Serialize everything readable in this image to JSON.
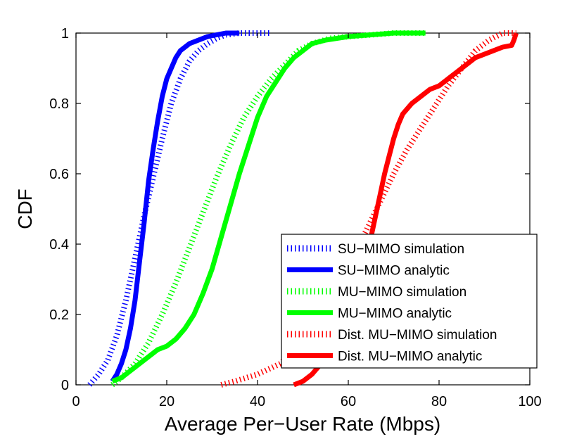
{
  "chart_data": {
    "type": "line",
    "title": "",
    "xlabel": "Average Per−User Rate (Mbps)",
    "ylabel": "CDF",
    "xlim": [
      0,
      100
    ],
    "ylim": [
      0,
      1
    ],
    "xticks": [
      0,
      20,
      40,
      60,
      80,
      100
    ],
    "xtick_labels": [
      "0",
      "20",
      "40",
      "60",
      "80",
      "100"
    ],
    "yticks": [
      0,
      0.2,
      0.4,
      0.6,
      0.8,
      1
    ],
    "ytick_labels": [
      "0",
      "0.2",
      "0.4",
      "0.6",
      "0.8",
      "1"
    ],
    "grid": false,
    "legend_position": "bottom-right",
    "series": [
      {
        "name": "SU−MIMO simulation",
        "color": "#0000ff",
        "style": "dotted",
        "x": [
          3,
          5,
          7,
          9,
          11,
          13,
          15,
          17,
          19,
          21,
          23,
          25,
          27,
          29,
          31,
          33,
          36,
          40,
          43
        ],
        "y": [
          0,
          0.03,
          0.07,
          0.14,
          0.24,
          0.36,
          0.48,
          0.59,
          0.7,
          0.8,
          0.87,
          0.92,
          0.95,
          0.97,
          0.985,
          0.995,
          1.0,
          1.0,
          1.0
        ]
      },
      {
        "name": "SU−MIMO analytic",
        "color": "#0000ff",
        "style": "solid",
        "x": [
          8,
          9,
          10,
          11,
          12,
          13,
          14,
          15,
          16,
          17,
          18,
          19,
          20,
          21,
          22,
          23,
          25,
          27,
          29,
          31,
          33,
          36
        ],
        "y": [
          0.01,
          0.03,
          0.06,
          0.1,
          0.16,
          0.24,
          0.35,
          0.46,
          0.58,
          0.67,
          0.75,
          0.82,
          0.87,
          0.9,
          0.93,
          0.95,
          0.97,
          0.98,
          0.99,
          0.995,
          1.0,
          1.0
        ]
      },
      {
        "name": "MU−MIMO simulation",
        "color": "#00ff00",
        "style": "dotted",
        "x": [
          8,
          10,
          13,
          16,
          19,
          22,
          25,
          28,
          31,
          34,
          37,
          40,
          43,
          46,
          49,
          52,
          56,
          60,
          65,
          70,
          77
        ],
        "y": [
          0,
          0.02,
          0.06,
          0.12,
          0.2,
          0.29,
          0.39,
          0.49,
          0.59,
          0.68,
          0.76,
          0.82,
          0.87,
          0.91,
          0.95,
          0.97,
          0.985,
          0.99,
          0.995,
          1.0,
          1.0
        ]
      },
      {
        "name": "MU−MIMO analytic",
        "color": "#00ff00",
        "style": "solid",
        "x": [
          8,
          10,
          12,
          14,
          16,
          18,
          20,
          22,
          24,
          26,
          28,
          30,
          32,
          34,
          36,
          38,
          40,
          42,
          44,
          46,
          48,
          50,
          52,
          55,
          60,
          65,
          70,
          77
        ],
        "y": [
          0.01,
          0.02,
          0.04,
          0.06,
          0.08,
          0.1,
          0.11,
          0.13,
          0.16,
          0.2,
          0.26,
          0.33,
          0.42,
          0.51,
          0.6,
          0.68,
          0.76,
          0.82,
          0.86,
          0.9,
          0.93,
          0.95,
          0.97,
          0.98,
          0.99,
          0.995,
          1.0,
          1.0
        ]
      },
      {
        "name": "Dist. MU−MIMO simulation",
        "color": "#ff0000",
        "style": "dotted",
        "x": [
          32,
          35,
          40,
          45,
          50,
          55,
          58,
          61,
          64,
          67,
          70,
          73,
          76,
          79,
          82,
          85,
          88,
          91,
          94,
          97
        ],
        "y": [
          0,
          0.01,
          0.03,
          0.06,
          0.12,
          0.2,
          0.28,
          0.36,
          0.44,
          0.52,
          0.6,
          0.67,
          0.73,
          0.79,
          0.85,
          0.9,
          0.95,
          0.98,
          1.0,
          1.0
        ]
      },
      {
        "name": "Dist. MU−MIMO analytic",
        "color": "#ff0000",
        "style": "solid",
        "x": [
          48,
          50,
          52,
          54,
          56,
          58,
          60,
          62,
          64,
          65,
          66,
          67,
          68,
          69,
          70,
          71,
          72,
          74,
          76,
          78,
          80,
          82,
          84,
          86,
          88,
          90,
          92,
          94,
          96,
          96.5,
          97
        ],
        "y": [
          0,
          0.01,
          0.03,
          0.06,
          0.1,
          0.15,
          0.21,
          0.28,
          0.36,
          0.42,
          0.48,
          0.54,
          0.6,
          0.65,
          0.7,
          0.74,
          0.77,
          0.8,
          0.82,
          0.84,
          0.85,
          0.87,
          0.89,
          0.91,
          0.93,
          0.94,
          0.95,
          0.96,
          0.965,
          0.98,
          1.0
        ]
      }
    ]
  }
}
